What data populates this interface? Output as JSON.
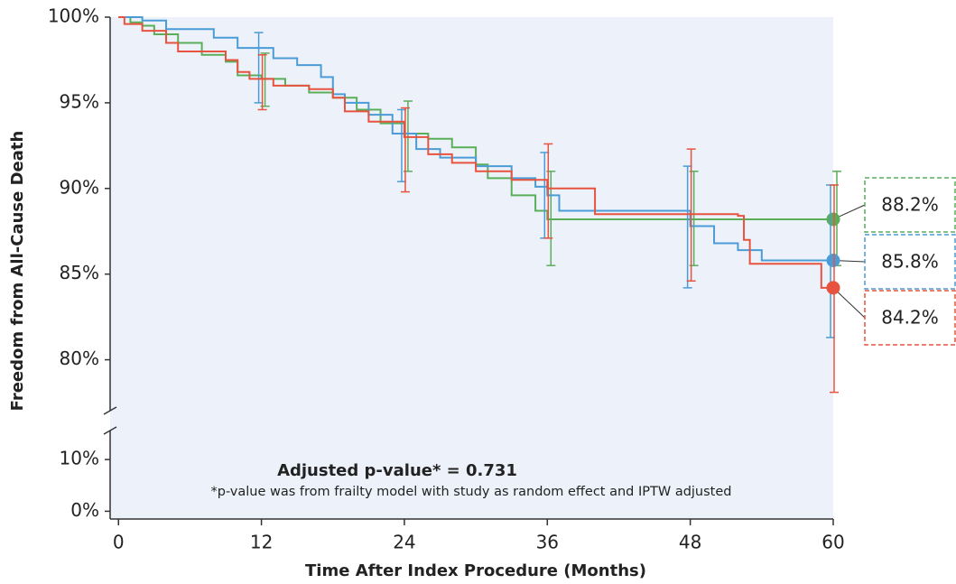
{
  "chart_data": {
    "type": "line",
    "step": true,
    "xlabel": "Time After Index Procedure (Months)",
    "ylabel": "Freedom from All-Cause Death",
    "annotation": "Adjusted p-value* = 0.731",
    "footnote": "*p-value was from frailty model with study as random effect and IPTW adjusted",
    "xlim": [
      -0.7,
      60
    ],
    "xticks": [
      0,
      12,
      24,
      36,
      48,
      60
    ],
    "ylim": [
      76.5,
      100
    ],
    "yticks": [
      {
        "value": 80,
        "label": "80%"
      },
      {
        "value": 85,
        "label": "85%"
      },
      {
        "value": 90,
        "label": "90%"
      },
      {
        "value": 95,
        "label": "95%"
      },
      {
        "value": 100,
        "label": "100%"
      }
    ],
    "y_break": {
      "ylim": [
        -1.5,
        17
      ],
      "yticks": [
        {
          "value": 0,
          "label": "0%"
        },
        {
          "value": 10,
          "label": "10%"
        }
      ]
    },
    "background": "#edf2fa",
    "series": [
      {
        "color": "#5aae5a",
        "x": [
          0,
          1,
          2,
          3,
          5,
          7,
          9,
          10,
          12,
          14,
          16,
          18,
          20,
          22,
          24,
          26,
          28,
          30,
          31,
          33,
          35,
          36,
          60
        ],
        "values": [
          100,
          99.7,
          99.5,
          99.0,
          98.5,
          97.8,
          97.4,
          96.6,
          96.4,
          96.0,
          95.6,
          95.3,
          94.6,
          93.8,
          93.2,
          92.9,
          92.4,
          91.4,
          90.6,
          89.6,
          88.7,
          88.2,
          88.2
        ],
        "ci_x": [
          12,
          24,
          36,
          48,
          60
        ],
        "ci_low": [
          94.8,
          91.0,
          85.5,
          85.5,
          85.5
        ],
        "ci_high": [
          97.9,
          95.1,
          91.0,
          91.0,
          91.0
        ],
        "end_value": 88.2,
        "end_label": "88.2%"
      },
      {
        "color": "#4b9cd6",
        "x": [
          0,
          2,
          4,
          8,
          10,
          13,
          15,
          17,
          18,
          19,
          21,
          23,
          25,
          27,
          30,
          33,
          35,
          36,
          37,
          48,
          50,
          52,
          54,
          60
        ],
        "values": [
          100,
          99.8,
          99.3,
          98.8,
          98.2,
          97.6,
          97.2,
          96.5,
          95.5,
          95.0,
          94.3,
          93.2,
          92.3,
          91.8,
          91.3,
          90.6,
          90.1,
          89.6,
          88.7,
          87.8,
          86.8,
          86.4,
          85.8,
          85.8
        ],
        "ci_x": [
          12,
          24,
          36,
          48,
          60
        ],
        "ci_low": [
          95.0,
          90.4,
          87.1,
          84.2,
          81.3
        ],
        "ci_high": [
          99.1,
          94.6,
          92.1,
          91.3,
          90.2
        ],
        "end_value": 85.8,
        "end_label": "85.8%"
      },
      {
        "color": "#e8533f",
        "x": [
          0,
          0.5,
          2,
          4,
          5,
          9,
          10,
          11,
          13,
          16,
          18,
          19,
          21,
          24,
          26,
          28,
          30,
          33,
          36,
          40,
          52,
          52.5,
          53,
          59,
          60
        ],
        "values": [
          100,
          99.6,
          99.2,
          98.5,
          98.0,
          97.5,
          96.8,
          96.4,
          96.0,
          95.8,
          95.3,
          94.5,
          93.9,
          93.0,
          92.0,
          91.5,
          91.0,
          90.5,
          90.0,
          88.5,
          88.4,
          87.0,
          85.6,
          84.2,
          84.2
        ],
        "ci_x": [
          12,
          24,
          36,
          48,
          60
        ],
        "ci_low": [
          94.6,
          89.8,
          87.1,
          84.6,
          78.1
        ],
        "ci_high": [
          97.8,
          94.7,
          92.6,
          92.3,
          90.2
        ],
        "end_value": 84.2,
        "end_label": "84.2%"
      }
    ]
  }
}
